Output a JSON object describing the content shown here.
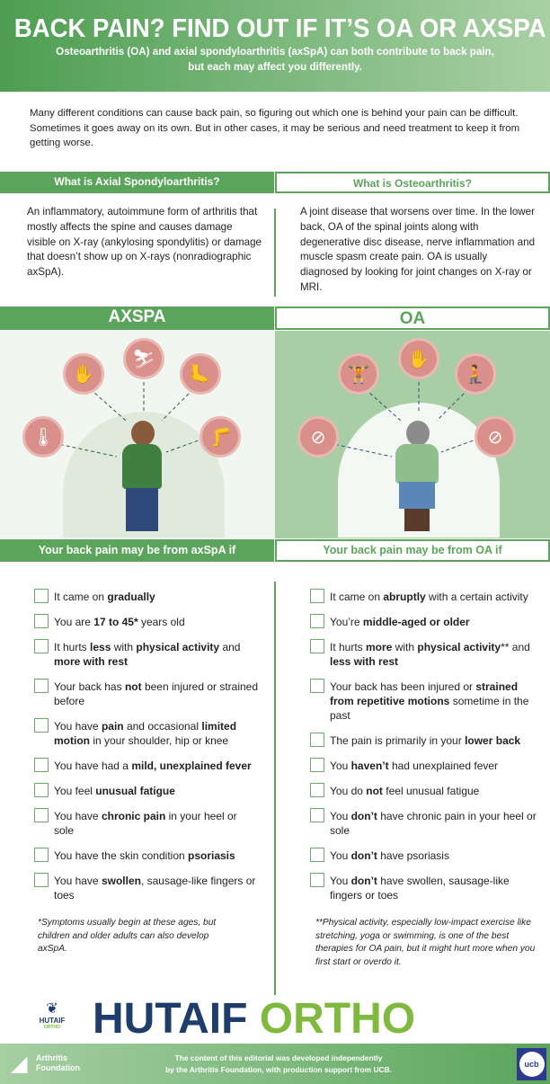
{
  "header": {
    "title": "BACK PAIN? FIND OUT IF IT’S OA OR AXSPA",
    "subtitle_line1": "Osteoarthritis (OA) and axial spondyloarthritis (axSpA) can both contribute to back pain,",
    "subtitle_line2": "but each may affect you differently."
  },
  "intro": "Many different conditions can cause back pain, so figuring out which one is behind your pain can be difficult. Sometimes it goes away on its own. But in other cases, it may be serious and need treatment to keep it from getting worse.",
  "what_is": {
    "axspa_heading": "What is Axial Spondyloarthritis?",
    "axspa_text": "An inflammatory, autoimmune form of arthritis that mostly affects the spine and causes damage visible on X-ray (ankylosing spondylitis) or damage that doesn’t show up on X-rays (nonradiographic axSpA).",
    "oa_heading": "What is Osteoarthritis?",
    "oa_text": "A joint disease that worsens over time. In the lower back, OA of the spinal joints along with degenerative disc disease, nerve inflammation and muscle spasm create pain. OA is usually diagnosed by looking for joint changes on X-ray or MRI."
  },
  "sections": {
    "axspa": "AXSPA",
    "oa": "OA",
    "axspa_check_heading": "Your back pain may be from axSpA if",
    "oa_check_heading": "Your back pain may be from OA if"
  },
  "colors": {
    "green": "#5aa55b",
    "symptom_circle": "#d98f8a",
    "navy": "#1e3d6b",
    "lime": "#7fb93d"
  },
  "axspa_items": [
    [
      {
        "t": "It came on "
      },
      {
        "t": "gradually",
        "b": true
      }
    ],
    [
      {
        "t": "You are "
      },
      {
        "t": "17 to 45*",
        "b": true
      },
      {
        "t": " years old"
      }
    ],
    [
      {
        "t": "It hurts "
      },
      {
        "t": "less",
        "b": true
      },
      {
        "t": " with "
      },
      {
        "t": "physical activity",
        "b": true
      },
      {
        "t": " and "
      },
      {
        "t": "more with rest",
        "b": true
      }
    ],
    [
      {
        "t": "Your back has "
      },
      {
        "t": "not",
        "b": true
      },
      {
        "t": " been injured or strained before"
      }
    ],
    [
      {
        "t": "You have "
      },
      {
        "t": "pain",
        "b": true
      },
      {
        "t": " and occasional "
      },
      {
        "t": "limited motion",
        "b": true
      },
      {
        "t": " in your shoulder, hip or knee"
      }
    ],
    [
      {
        "t": "You have had a "
      },
      {
        "t": "mild, unexplained fever",
        "b": true
      }
    ],
    [
      {
        "t": "You feel "
      },
      {
        "t": "unusual fatigue",
        "b": true
      }
    ],
    [
      {
        "t": "You have "
      },
      {
        "t": "chronic pain",
        "b": true
      },
      {
        "t": " in your heel or sole"
      }
    ],
    [
      {
        "t": "You have the skin condition "
      },
      {
        "t": "psoriasis",
        "b": true
      }
    ],
    [
      {
        "t": "You have "
      },
      {
        "t": "swollen",
        "b": true
      },
      {
        "t": ", sausage-like fingers or toes"
      }
    ]
  ],
  "oa_items": [
    [
      {
        "t": "It came on "
      },
      {
        "t": "abruptly",
        "b": true
      },
      {
        "t": " with a certain activity"
      }
    ],
    [
      {
        "t": "You’re "
      },
      {
        "t": "middle-aged or older",
        "b": true
      }
    ],
    [
      {
        "t": "It hurts "
      },
      {
        "t": "more",
        "b": true
      },
      {
        "t": " with "
      },
      {
        "t": "physical activity",
        "b": true
      },
      {
        "t": "** and "
      },
      {
        "t": "less with rest",
        "b": true
      }
    ],
    [
      {
        "t": "Your back has been injured or "
      },
      {
        "t": "strained from repetitive motions",
        "b": true
      },
      {
        "t": " sometime in the past"
      }
    ],
    [
      {
        "t": "The pain is primarily in your "
      },
      {
        "t": "lower back",
        "b": true
      }
    ],
    [
      {
        "t": "You "
      },
      {
        "t": "haven’t",
        "b": true
      },
      {
        "t": " had unexplained fever"
      }
    ],
    [
      {
        "t": "You do "
      },
      {
        "t": "not",
        "b": true
      },
      {
        "t": " feel unusual fatigue"
      }
    ],
    [
      {
        "t": "You "
      },
      {
        "t": "don’t",
        "b": true
      },
      {
        "t": " have chronic pain in your heel or sole"
      }
    ],
    [
      {
        "t": "You "
      },
      {
        "t": "don’t",
        "b": true
      },
      {
        "t": " have psoriasis"
      }
    ],
    [
      {
        "t": "You "
      },
      {
        "t": "don’t",
        "b": true
      },
      {
        "t": " have swollen, sausage-like fingers or toes"
      }
    ]
  ],
  "notes": {
    "axspa": "*Symptoms usually begin at these ages, but children and older adults can also develop axSpA.",
    "oa": "**Physical activity, especially low-impact exercise like stretching, yoga or swimming, is one of the best therapies for OA pain, but it might hurt more when you first start or overdo it."
  },
  "watermark": {
    "part1": "HUTAIF",
    "part2": "ORTHO",
    "logo_text": "HUTAIF",
    "logo_sub": "ORTHO"
  },
  "footer": {
    "af_line1": "Arthritis",
    "af_line2": "Foundation",
    "text_line1": "The content of this editorial was developed independently",
    "text_line2": "by the Arthritis Foundation, with production support from UCB.",
    "ucb": "ucb"
  }
}
